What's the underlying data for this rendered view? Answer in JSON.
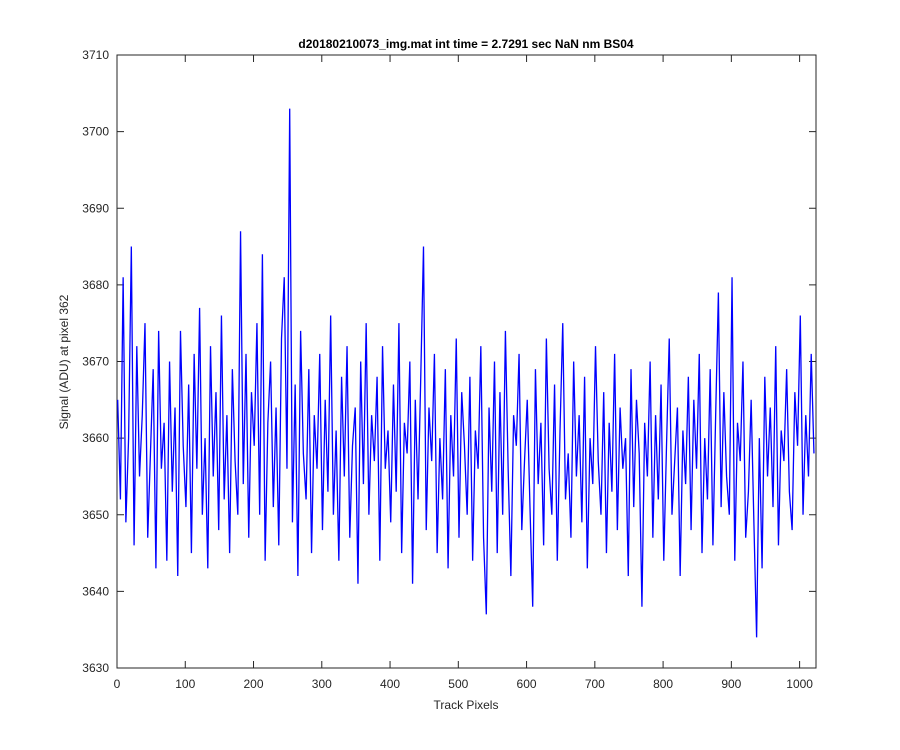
{
  "chart_data": {
    "type": "line",
    "title": "d20180210073_img.mat int time = 2.7291 sec  NaN nm BS04",
    "x_label": "Track Pixels",
    "y_label": "Signal (ADU) at pixel 362",
    "xlim": [
      0,
      1024
    ],
    "xticks": [
      0,
      100,
      200,
      300,
      400,
      500,
      600,
      700,
      800,
      900,
      1000
    ],
    "ylim": [
      3630,
      3710
    ],
    "yticks": [
      3630,
      3640,
      3650,
      3660,
      3670,
      3680,
      3690,
      3700,
      3710
    ],
    "grid": false,
    "x": [
      1,
      5,
      9,
      13,
      17,
      21,
      25,
      29,
      33,
      37,
      41,
      45,
      49,
      53,
      57,
      61,
      65,
      69,
      73,
      77,
      81,
      85,
      89,
      93,
      97,
      101,
      105,
      109,
      113,
      117,
      121,
      125,
      129,
      133,
      137,
      141,
      145,
      149,
      153,
      157,
      161,
      165,
      169,
      173,
      177,
      181,
      185,
      189,
      193,
      197,
      201,
      205,
      209,
      213,
      217,
      221,
      225,
      229,
      233,
      237,
      241,
      245,
      249,
      253,
      257,
      261,
      265,
      269,
      273,
      277,
      281,
      285,
      289,
      293,
      297,
      301,
      305,
      309,
      313,
      317,
      321,
      325,
      329,
      333,
      337,
      341,
      345,
      349,
      353,
      357,
      361,
      365,
      369,
      373,
      377,
      381,
      385,
      389,
      393,
      397,
      401,
      405,
      409,
      413,
      417,
      421,
      425,
      429,
      433,
      437,
      441,
      445,
      449,
      453,
      457,
      461,
      465,
      469,
      473,
      477,
      481,
      485,
      489,
      493,
      497,
      501,
      505,
      509,
      513,
      517,
      521,
      525,
      529,
      533,
      537,
      541,
      545,
      549,
      553,
      557,
      561,
      565,
      569,
      573,
      577,
      581,
      585,
      589,
      593,
      597,
      601,
      605,
      609,
      613,
      617,
      621,
      625,
      629,
      633,
      637,
      641,
      645,
      649,
      653,
      657,
      661,
      665,
      669,
      673,
      677,
      681,
      685,
      689,
      693,
      697,
      701,
      705,
      709,
      713,
      717,
      721,
      725,
      729,
      733,
      737,
      741,
      745,
      749,
      753,
      757,
      761,
      765,
      769,
      773,
      777,
      781,
      785,
      789,
      793,
      797,
      801,
      805,
      809,
      813,
      817,
      821,
      825,
      829,
      833,
      837,
      841,
      845,
      849,
      853,
      857,
      861,
      865,
      869,
      873,
      877,
      881,
      885,
      889,
      893,
      897,
      901,
      905,
      909,
      913,
      917,
      921,
      925,
      929,
      933,
      937,
      941,
      945,
      949,
      953,
      957,
      961,
      965,
      969,
      973,
      977,
      981,
      985,
      989,
      993,
      997,
      1001,
      1005,
      1009,
      1013,
      1017,
      1021
    ],
    "series": [
      {
        "name": "signal",
        "color": "#0000ff",
        "values": [
          3665,
          3652,
          3681,
          3649,
          3660,
          3685,
          3646,
          3672,
          3655,
          3663,
          3675,
          3647,
          3658,
          3669,
          3643,
          3674,
          3656,
          3662,
          3644,
          3670,
          3653,
          3664,
          3642,
          3674,
          3659,
          3651,
          3667,
          3645,
          3671,
          3656,
          3677,
          3650,
          3660,
          3643,
          3672,
          3655,
          3666,
          3648,
          3676,
          3652,
          3663,
          3645,
          3669,
          3657,
          3650,
          3687,
          3654,
          3671,
          3647,
          3666,
          3659,
          3675,
          3650,
          3684,
          3644,
          3662,
          3670,
          3651,
          3664,
          3646,
          3673,
          3681,
          3656,
          3703,
          3649,
          3667,
          3642,
          3674,
          3658,
          3652,
          3669,
          3645,
          3663,
          3656,
          3671,
          3648,
          3665,
          3653,
          3676,
          3650,
          3661,
          3644,
          3668,
          3655,
          3672,
          3647,
          3659,
          3664,
          3641,
          3670,
          3654,
          3675,
          3650,
          3663,
          3657,
          3668,
          3644,
          3672,
          3656,
          3661,
          3649,
          3667,
          3653,
          3675,
          3645,
          3662,
          3658,
          3670,
          3641,
          3665,
          3652,
          3668,
          3685,
          3648,
          3664,
          3657,
          3671,
          3645,
          3660,
          3652,
          3669,
          3643,
          3663,
          3655,
          3673,
          3647,
          3666,
          3659,
          3650,
          3668,
          3644,
          3661,
          3656,
          3672,
          3647,
          3637,
          3664,
          3653,
          3670,
          3645,
          3666,
          3650,
          3674,
          3656,
          3642,
          3663,
          3659,
          3671,
          3648,
          3657,
          3665,
          3651,
          3638,
          3669,
          3654,
          3662,
          3646,
          3673,
          3656,
          3650,
          3667,
          3644,
          3661,
          3675,
          3652,
          3658,
          3647,
          3670,
          3655,
          3663,
          3649,
          3668,
          3643,
          3660,
          3654,
          3672,
          3657,
          3650,
          3666,
          3645,
          3662,
          3653,
          3671,
          3648,
          3664,
          3656,
          3660,
          3642,
          3669,
          3651,
          3665,
          3658,
          3638,
          3662,
          3655,
          3670,
          3647,
          3663,
          3652,
          3667,
          3644,
          3659,
          3673,
          3650,
          3657,
          3664,
          3642,
          3661,
          3654,
          3668,
          3648,
          3665,
          3656,
          3671,
          3645,
          3660,
          3652,
          3669,
          3646,
          3663,
          3679,
          3651,
          3666,
          3655,
          3650,
          3681,
          3644,
          3662,
          3657,
          3670,
          3647,
          3653,
          3665,
          3649,
          3634,
          3660,
          3643,
          3668,
          3655,
          3664,
          3651,
          3672,
          3646,
          3661,
          3657,
          3669,
          3653,
          3648,
          3666,
          3659,
          3676,
          3650,
          3663,
          3655,
          3671,
          3658
        ]
      }
    ]
  }
}
